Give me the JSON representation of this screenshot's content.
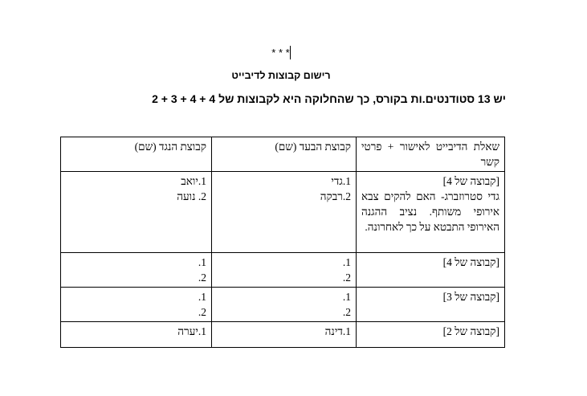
{
  "stars": "* * *",
  "title": "רישום קבוצות לדיבייט",
  "intro": "יש 13 סטודנטים.ות בקורס, כך שהחלוקה היא לקבוצות של 4 + 4 + 3 + 2",
  "table": {
    "headers": [
      "שאלת הדיבייט לאישור + פרטי קשר",
      "קבוצת הבעד (שם)",
      "קבוצת הנגד (שם)"
    ],
    "rows": [
      {
        "group": "[קבוצה של 4]",
        "question": "גדי סטרוזברג- האם להקים צבא אירופי משותף. נציב ההגנה האירופי התבטא על כך לאחרונה.",
        "pro": [
          "1.גדי",
          "2.רבקה"
        ],
        "con": [
          "1.יואב",
          "2. נועה"
        ]
      },
      {
        "group": "[קבוצה של 4]",
        "question": "",
        "pro": [
          "1.",
          "2."
        ],
        "con": [
          "1.",
          "2."
        ]
      },
      {
        "group": "[קבוצה של 3]",
        "question": "",
        "pro": [
          "1.",
          "2."
        ],
        "con": [
          "1.",
          "2."
        ]
      },
      {
        "group": "[קבוצה של 2]",
        "question": "",
        "pro": [
          "1.דינה"
        ],
        "con": [
          "1.יערה"
        ]
      }
    ]
  }
}
